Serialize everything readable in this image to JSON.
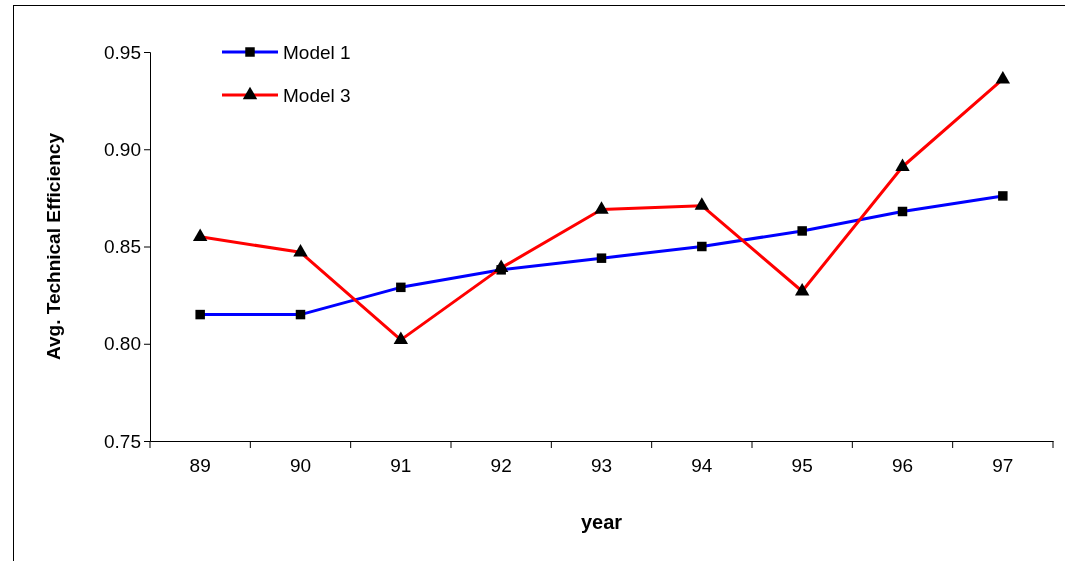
{
  "chart_data": {
    "type": "line",
    "xlabel": "year",
    "ylabel": "Avg. Technical Efficiency",
    "categories": [
      "89",
      "90",
      "91",
      "92",
      "93",
      "94",
      "95",
      "96",
      "97"
    ],
    "series": [
      {
        "name": "Model 1",
        "color": "#0000ff",
        "marker": "square",
        "values": [
          0.815,
          0.815,
          0.829,
          0.838,
          0.844,
          0.85,
          0.858,
          0.868,
          0.876
        ]
      },
      {
        "name": "Model 3",
        "color": "#ff0000",
        "marker": "triangle",
        "values": [
          0.855,
          0.847,
          0.802,
          0.839,
          0.869,
          0.871,
          0.827,
          0.891,
          0.936
        ]
      }
    ],
    "ylim": [
      0.75,
      0.95
    ],
    "yticks": [
      {
        "value": 0.75,
        "label": "0.75"
      },
      {
        "value": 0.8,
        "label": "0.80"
      },
      {
        "value": 0.85,
        "label": "0.85"
      },
      {
        "value": 0.9,
        "label": "0.90"
      },
      {
        "value": 0.95,
        "label": "0.95"
      }
    ],
    "grid": false,
    "legend": "top left",
    "line_style": "solid"
  }
}
